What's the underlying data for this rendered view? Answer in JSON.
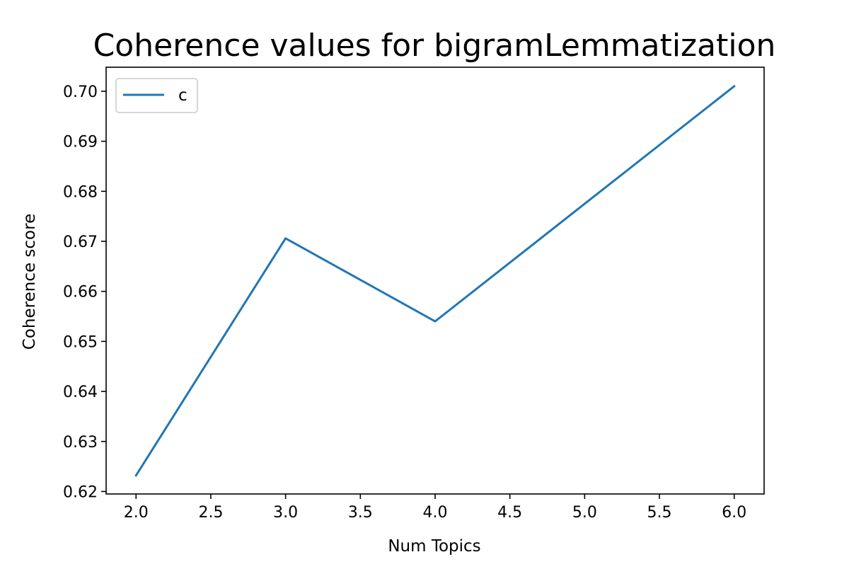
{
  "chart_data": {
    "type": "line",
    "title": "Coherence values for bigramLemmatization",
    "xlabel": "Num Topics",
    "ylabel": "Coherence score",
    "x": [
      2,
      3,
      4,
      5,
      6
    ],
    "series": [
      {
        "name": "c",
        "color": "#1f77b4",
        "values": [
          0.6232,
          0.6706,
          0.654,
          0.6775,
          0.701
        ]
      }
    ],
    "xlim": [
      1.8,
      6.2
    ],
    "ylim": [
      0.6195,
      0.7048
    ],
    "xticks": [
      2.0,
      2.5,
      3.0,
      3.5,
      4.0,
      4.5,
      5.0,
      5.5,
      6.0
    ],
    "xtick_labels": [
      "2.0",
      "2.5",
      "3.0",
      "3.5",
      "4.0",
      "4.5",
      "5.0",
      "5.5",
      "6.0"
    ],
    "yticks": [
      0.62,
      0.63,
      0.64,
      0.65,
      0.66,
      0.67,
      0.68,
      0.69,
      0.7
    ],
    "ytick_labels": [
      "0.62",
      "0.63",
      "0.64",
      "0.65",
      "0.66",
      "0.67",
      "0.68",
      "0.69",
      "0.70"
    ],
    "grid": false,
    "legend_position": "top-left"
  }
}
